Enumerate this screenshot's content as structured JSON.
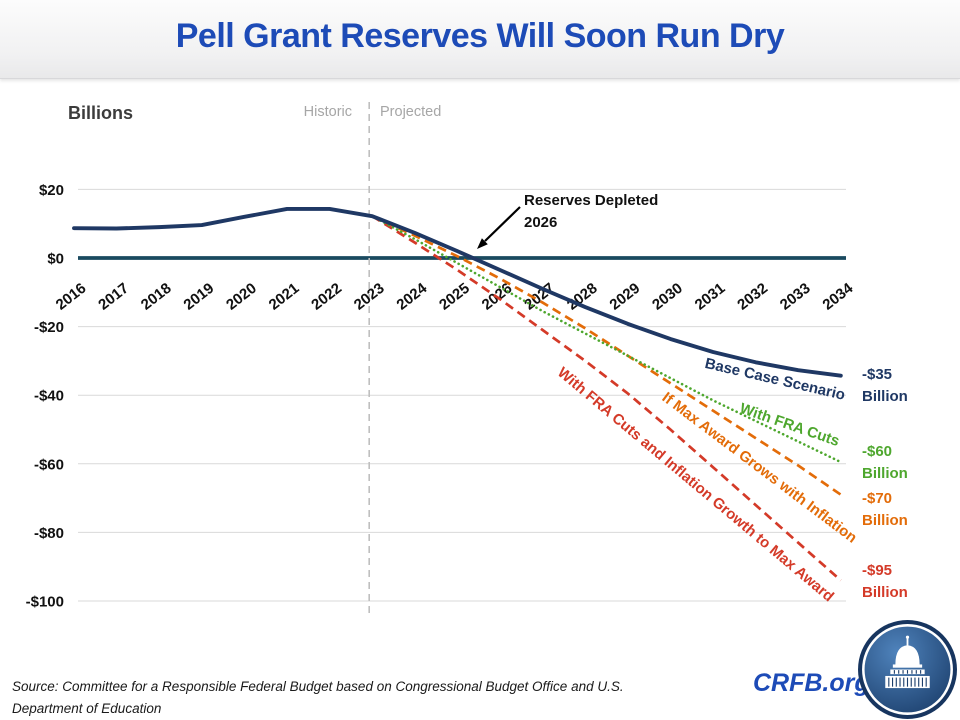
{
  "header": {
    "title": "Pell Grant Reserves Will Soon Run Dry"
  },
  "chart": {
    "y_axis_title": "Billions",
    "era_labels": {
      "historic": "Historic",
      "projected": "Projected"
    },
    "annotation": {
      "line1": "Reserves Depleted",
      "line2": "2026"
    }
  },
  "chart_data": {
    "type": "line",
    "title": "Pell Grant Reserves Will Soon Run Dry",
    "xlabel": "",
    "ylabel": "Billions",
    "ylim": [
      -100,
      20
    ],
    "grid": true,
    "legend_position": "inline-line-labels",
    "x": [
      2016,
      2017,
      2018,
      2019,
      2020,
      2021,
      2022,
      2023,
      2024,
      2025,
      2026,
      2027,
      2028,
      2029,
      2030,
      2031,
      2032,
      2033,
      2034
    ],
    "divider_year": 2023,
    "annotation": "Reserves Depleted 2026",
    "y_ticks": [
      {
        "label": "$20",
        "value": 20
      },
      {
        "label": "$0",
        "value": 0
      },
      {
        "label": "-$20",
        "value": -20
      },
      {
        "label": "-$40",
        "value": -40
      },
      {
        "label": "-$60",
        "value": -60
      },
      {
        "label": "-$80",
        "value": -80
      },
      {
        "label": "-$100",
        "value": -100
      }
    ],
    "series": [
      {
        "name": "Base Case Scenario",
        "color": "#1F3864",
        "style": "solid",
        "end_value": "-$35",
        "end_unit": "Billion",
        "values": [
          8.7,
          8.6,
          9.0,
          9.6,
          12.0,
          14.3,
          14.3,
          12.2,
          7.3,
          2.0,
          -3.5,
          -9.0,
          -14.3,
          -19.2,
          -23.6,
          -27.4,
          -30.4,
          -32.7,
          -34.3
        ]
      },
      {
        "name": "With FRA Cuts",
        "color": "#4EA72E",
        "style": "dotted",
        "end_value": "-$60",
        "end_unit": "Billion",
        "values": [
          null,
          null,
          null,
          null,
          null,
          null,
          null,
          12.2,
          5.5,
          -1.5,
          -8.5,
          -15.5,
          -22.0,
          -28.5,
          -35.0,
          -41.5,
          -47.5,
          -53.5,
          -59.5
        ]
      },
      {
        "name": "If Max Award Grows with Inflation",
        "color": "#E36C09",
        "style": "dashed",
        "end_value": "-$70",
        "end_unit": "Billion",
        "values": [
          null,
          null,
          null,
          null,
          null,
          null,
          null,
          12.2,
          6.5,
          0.5,
          -6.0,
          -13.0,
          -20.5,
          -28.5,
          -36.5,
          -44.5,
          -52.5,
          -60.5,
          -69.0
        ]
      },
      {
        "name": "With FRA Cuts and Inflation Growth to Max Award",
        "color": "#D43A28",
        "style": "dashed",
        "end_value": "-$95",
        "end_unit": "Billion",
        "values": [
          null,
          null,
          null,
          null,
          null,
          null,
          null,
          12.2,
          4.5,
          -3.5,
          -12.0,
          -21.0,
          -30.0,
          -39.5,
          -50.0,
          -61.0,
          -72.0,
          -83.0,
          -94.0
        ]
      }
    ]
  },
  "footer": {
    "source_line1": "Source: Committee for a Responsible Federal Budget based on Congressional Budget Office and U.S.",
    "source_line2": "Department of Education",
    "site": "CRFB.org"
  }
}
